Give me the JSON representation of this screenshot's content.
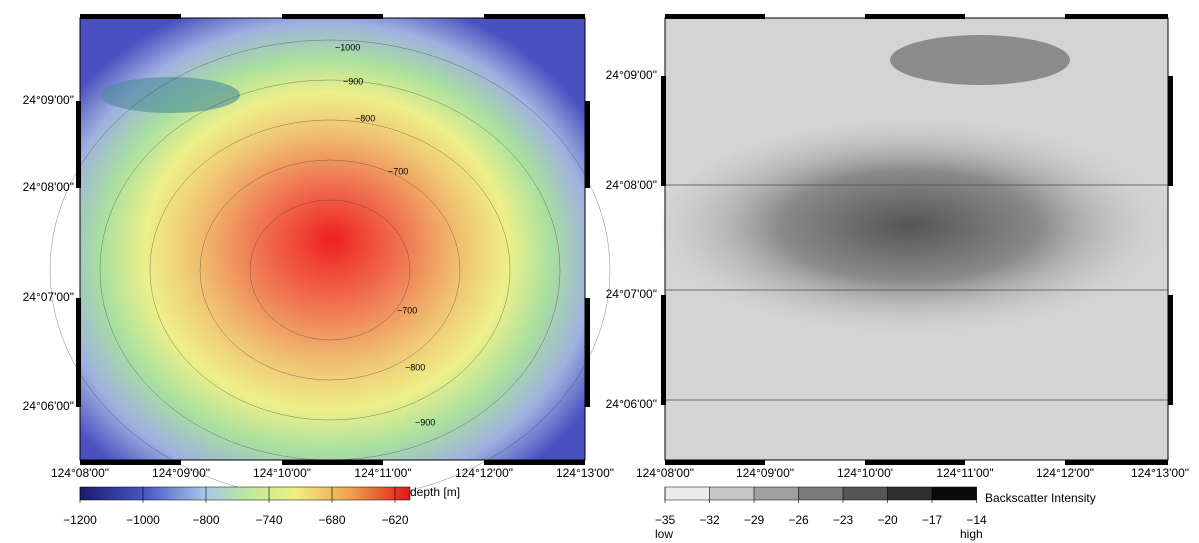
{
  "left_map": {
    "lat_labels": [
      "24°09'00\"",
      "24°08'00\"",
      "24°07'00\"",
      "24°06'00\""
    ],
    "lon_labels": [
      "124°08'00\"",
      "124°09'00\"",
      "124°10'00\"",
      "124°11'00\"",
      "124°12'00\"",
      "124°13'00\""
    ],
    "contour_labels": [
      "−1000",
      "−900",
      "−800",
      "−700",
      "−700",
      "−800",
      "−900"
    ],
    "colorbar": {
      "title": "depth [m]",
      "ticks": [
        "−1200",
        "−1000",
        "−800",
        "−740",
        "−680",
        "−620"
      ]
    }
  },
  "right_map": {
    "lat_labels": [
      "24°09'00\"",
      "24°08'00\"",
      "24°07'00\"",
      "24°06'00\""
    ],
    "lon_labels": [
      "124°08'00\"",
      "124°09'00\"",
      "124°10'00'",
      "124°11'00\"",
      "124°12'00\"",
      "124°13'00\""
    ],
    "colorbar": {
      "title": "Backscatter Intensity",
      "ticks": [
        "−35",
        "−32",
        "−29",
        "−26",
        "−23",
        "−20",
        "−17",
        "−14"
      ],
      "low": "low",
      "high": "high"
    }
  }
}
